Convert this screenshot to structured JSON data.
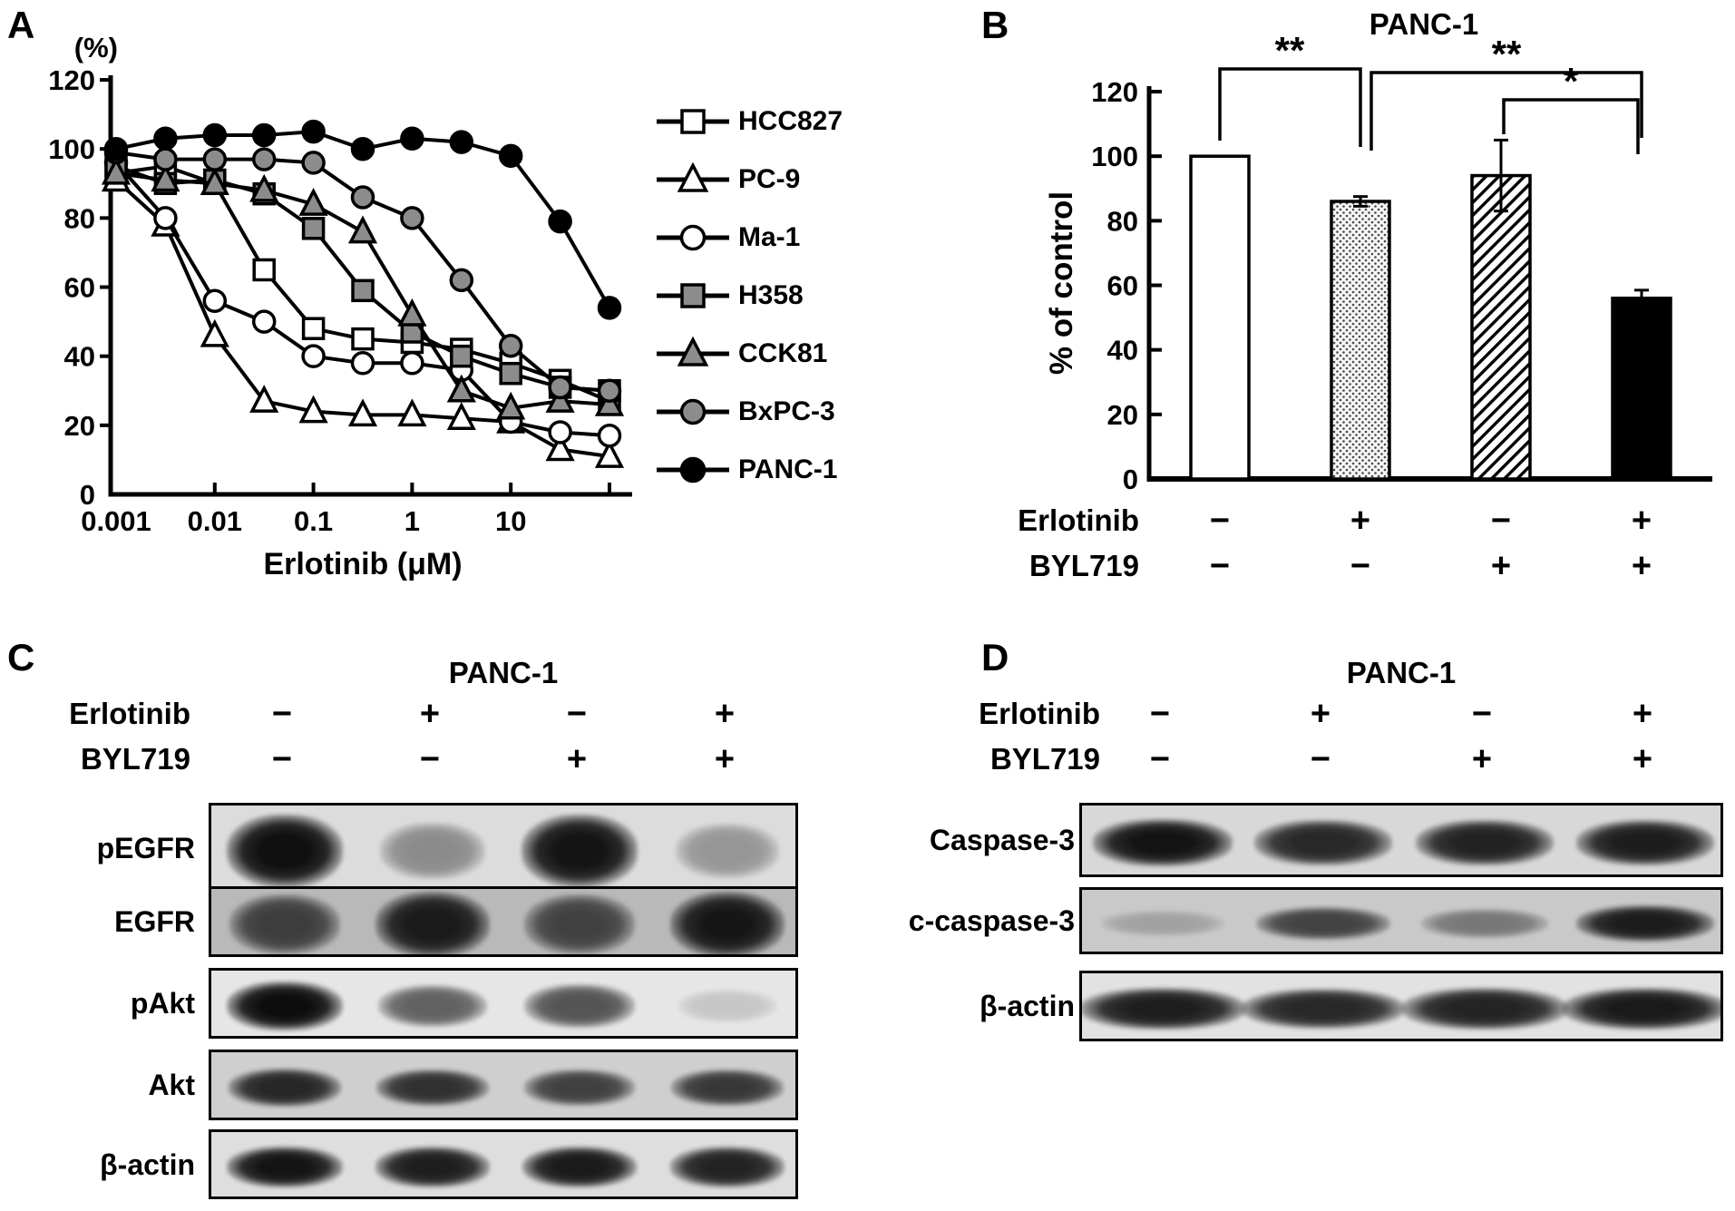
{
  "figure": {
    "panel_a": {
      "label": "A",
      "y_unit": "(%)",
      "xlabel": "Erlotinib (μM)"
    },
    "panel_b": {
      "label": "B",
      "title": "PANC-1",
      "ylabel": "% of control",
      "treatments": [
        {
          "name": "Erlotinib",
          "values": [
            "−",
            "+",
            "−",
            "+"
          ]
        },
        {
          "name": "BYL719",
          "values": [
            "−",
            "−",
            "+",
            "+"
          ]
        }
      ]
    },
    "panel_c": {
      "label": "C",
      "title": "PANC-1"
    },
    "panel_d": {
      "label": "D",
      "title": "PANC-1"
    }
  },
  "chart_data": [
    {
      "panel": "A",
      "type": "line",
      "x_scale": "log",
      "xlabel": "Erlotinib (μM)",
      "y_unit": "(%)",
      "ylim": [
        0,
        120
      ],
      "yticks": [
        0,
        20,
        40,
        60,
        80,
        100,
        120
      ],
      "x": [
        0.001,
        0.003,
        0.01,
        0.03,
        0.1,
        0.3,
        1,
        3,
        10,
        30,
        100
      ],
      "x_tick_labels": [
        "0.001",
        "0.01",
        "0.1",
        "1",
        "10"
      ],
      "legend_position": "right",
      "series": [
        {
          "name": "HCC827",
          "marker": "square",
          "fill": "#ffffff",
          "line": "#000000",
          "values": [
            93,
            95,
            90,
            65,
            48,
            45,
            44,
            42,
            38,
            33,
            27
          ]
        },
        {
          "name": "PC-9",
          "marker": "triangle",
          "fill": "#ffffff",
          "line": "#000000",
          "values": [
            91,
            78,
            46,
            27,
            24,
            23,
            23,
            22,
            21,
            13,
            11
          ]
        },
        {
          "name": "Ma-1",
          "marker": "circle",
          "fill": "#ffffff",
          "line": "#000000",
          "values": [
            96,
            80,
            56,
            50,
            40,
            38,
            38,
            36,
            21,
            18,
            17
          ]
        },
        {
          "name": "H358",
          "marker": "square",
          "fill": "#8c8c8c",
          "line": "#000000",
          "values": [
            95,
            90,
            91,
            87,
            77,
            59,
            47,
            40,
            35,
            31,
            30
          ]
        },
        {
          "name": "CCK81",
          "marker": "triangle",
          "fill": "#8c8c8c",
          "line": "#000000",
          "values": [
            93,
            91,
            90,
            88,
            84,
            76,
            52,
            30,
            25,
            27,
            26
          ]
        },
        {
          "name": "BxPC-3",
          "marker": "circle",
          "fill": "#8c8c8c",
          "line": "#000000",
          "values": [
            99,
            97,
            97,
            97,
            96,
            86,
            80,
            62,
            43,
            31,
            30
          ]
        },
        {
          "name": "PANC-1",
          "marker": "circle",
          "fill": "#000000",
          "line": "#000000",
          "values": [
            100,
            103,
            104,
            104,
            105,
            100,
            103,
            102,
            98,
            79,
            54
          ]
        }
      ]
    },
    {
      "panel": "B",
      "type": "bar",
      "title": "PANC-1",
      "ylabel": "% of control",
      "ylim": [
        0,
        120
      ],
      "yticks": [
        0,
        20,
        40,
        60,
        80,
        100,
        120
      ],
      "categories": [
        {
          "Erlotinib": "−",
          "BYL719": "−"
        },
        {
          "Erlotinib": "+",
          "BYL719": "−"
        },
        {
          "Erlotinib": "−",
          "BYL719": "+"
        },
        {
          "Erlotinib": "+",
          "BYL719": "+"
        }
      ],
      "values": [
        100,
        86,
        94,
        56
      ],
      "errors": [
        0,
        1.5,
        11,
        2.5
      ],
      "bar_styles": [
        "open-white",
        "stipple-dots",
        "diagonal-hatch",
        "solid-black"
      ],
      "significance": [
        {
          "groups": [
            1,
            2
          ],
          "label": "**"
        },
        {
          "groups": [
            2,
            4
          ],
          "label": "**"
        },
        {
          "groups": [
            3,
            4
          ],
          "label": "*"
        }
      ]
    }
  ],
  "western_blots": {
    "panel_c": {
      "title": "PANC-1",
      "treatments": [
        {
          "name": "Erlotinib",
          "values": [
            "−",
            "+",
            "−",
            "+"
          ]
        },
        {
          "name": "BYL719",
          "values": [
            "−",
            "−",
            "+",
            "+"
          ]
        }
      ],
      "rows": [
        {
          "protein": "pEGFR",
          "band_intensities": [
            0.97,
            0.38,
            0.95,
            0.33
          ]
        },
        {
          "protein": "EGFR",
          "band_intensities": [
            0.7,
            0.9,
            0.68,
            0.92
          ]
        },
        {
          "protein": "pAkt",
          "band_intensities": [
            0.98,
            0.6,
            0.66,
            0.14
          ]
        },
        {
          "protein": "Akt",
          "band_intensities": [
            0.85,
            0.8,
            0.72,
            0.76
          ]
        },
        {
          "protein": "β-actin",
          "band_intensities": [
            0.95,
            0.9,
            0.92,
            0.88
          ]
        }
      ]
    },
    "panel_d": {
      "title": "PANC-1",
      "treatments": [
        {
          "name": "Erlotinib",
          "values": [
            "−",
            "+",
            "−",
            "+"
          ]
        },
        {
          "name": "BYL719",
          "values": [
            "−",
            "−",
            "+",
            "+"
          ]
        }
      ],
      "rows": [
        {
          "protein": "Caspase-3",
          "band_intensities": [
            0.95,
            0.85,
            0.88,
            0.9
          ]
        },
        {
          "protein": "c-caspase-3",
          "band_intensities": [
            0.2,
            0.7,
            0.42,
            0.9
          ]
        },
        {
          "protein": "β-actin",
          "band_intensities": [
            0.9,
            0.86,
            0.88,
            0.92
          ]
        }
      ]
    }
  }
}
